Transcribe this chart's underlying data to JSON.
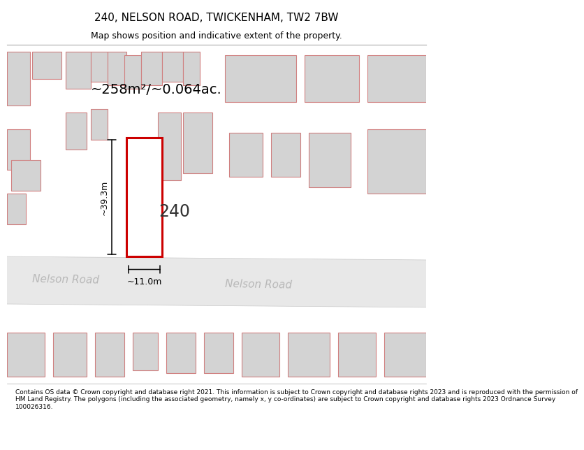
{
  "title": "240, NELSON ROAD, TWICKENHAM, TW2 7BW",
  "subtitle": "Map shows position and indicative extent of the property.",
  "area_text": "~258m²/~0.064ac.",
  "number_label": "240",
  "dim_width": "~11.0m",
  "dim_height": "~39.3m",
  "road_label_1": "Nelson Road",
  "road_label_2": "Nelson Road",
  "footer_text": "Contains OS data © Crown copyright and database right 2021. This information is subject to Crown copyright and database rights 2023 and is reproduced with the permission of\nHM Land Registry. The polygons (including the associated geometry, namely x, y co-ordinates) are subject to Crown copyright and database rights 2023 Ordnance Survey\n100026316.",
  "bg_color": "#f9f0f0",
  "map_bg": "#ffffff",
  "building_fill": "#d3d3d3",
  "building_edge": "#d08080",
  "highlight_fill": "#ffffff",
  "highlight_edge": "#cc0000",
  "dim_line_color": "#000000",
  "text_color": "#333333",
  "road_text_color": "#aaaaaa"
}
